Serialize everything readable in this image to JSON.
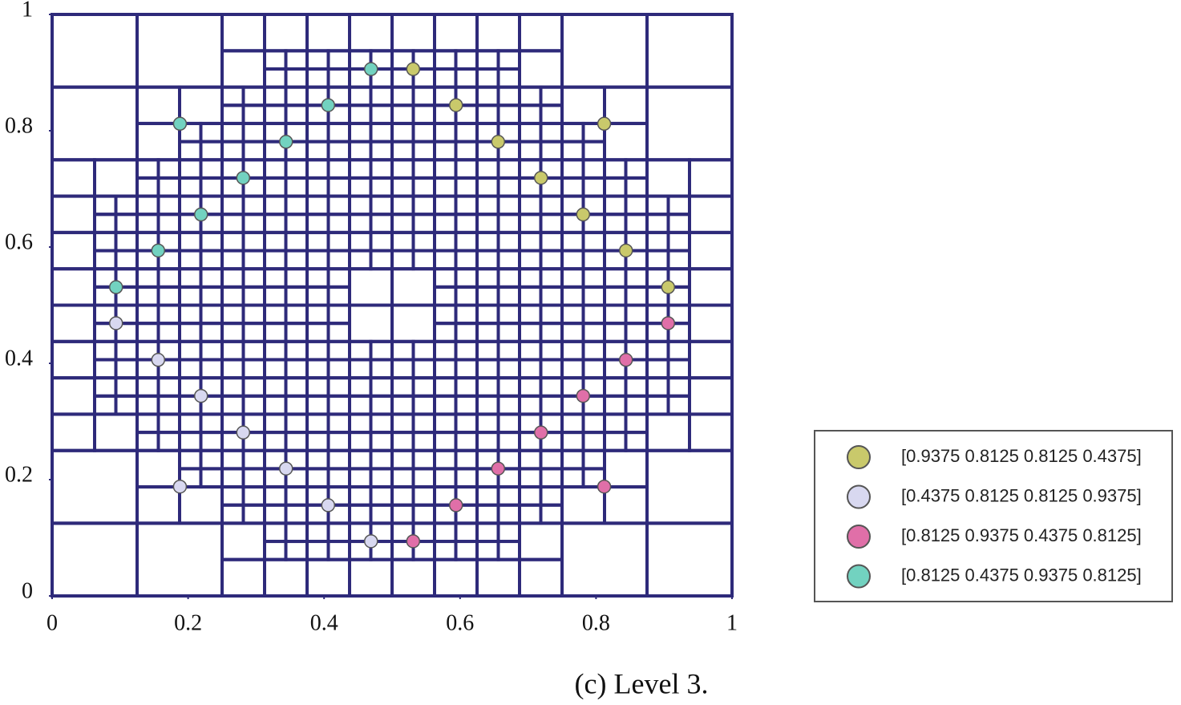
{
  "chart_data": {
    "type": "scatter",
    "caption": "(c) Level 3.",
    "xlim": [
      0,
      1
    ],
    "ylim": [
      0,
      1
    ],
    "xticks": [
      0,
      0.2,
      0.4,
      0.6,
      0.8,
      1
    ],
    "yticks": [
      0,
      0.2,
      0.4,
      0.6,
      0.8,
      1
    ],
    "mesh_color": "#2e2a7a",
    "series": [
      {
        "name": "[0.9375 0.8125 0.8125 0.4375]",
        "color": "#c9c96b",
        "x": [
          0.531,
          0.594,
          0.656,
          0.719,
          0.781,
          0.844,
          0.906,
          0.812
        ],
        "values": [
          0.906,
          0.844,
          0.781,
          0.719,
          0.656,
          0.594,
          0.531,
          0.812
        ]
      },
      {
        "name": "[0.4375 0.8125 0.8125 0.9375]",
        "color": "#d8d8f0",
        "x": [
          0.094,
          0.156,
          0.219,
          0.281,
          0.344,
          0.406,
          0.469,
          0.188
        ],
        "values": [
          0.469,
          0.406,
          0.344,
          0.281,
          0.219,
          0.156,
          0.094,
          0.188
        ]
      },
      {
        "name": "[0.8125 0.9375 0.4375 0.8125]",
        "color": "#e06fa8",
        "x": [
          0.531,
          0.594,
          0.656,
          0.719,
          0.781,
          0.844,
          0.906,
          0.812
        ],
        "values": [
          0.094,
          0.156,
          0.219,
          0.281,
          0.344,
          0.406,
          0.469,
          0.188
        ]
      },
      {
        "name": "[0.8125 0.4375 0.9375 0.8125]",
        "color": "#72d2c0",
        "x": [
          0.094,
          0.156,
          0.219,
          0.281,
          0.344,
          0.406,
          0.469,
          0.188
        ],
        "values": [
          0.531,
          0.594,
          0.656,
          0.719,
          0.781,
          0.844,
          0.906,
          0.812
        ]
      }
    ]
  }
}
